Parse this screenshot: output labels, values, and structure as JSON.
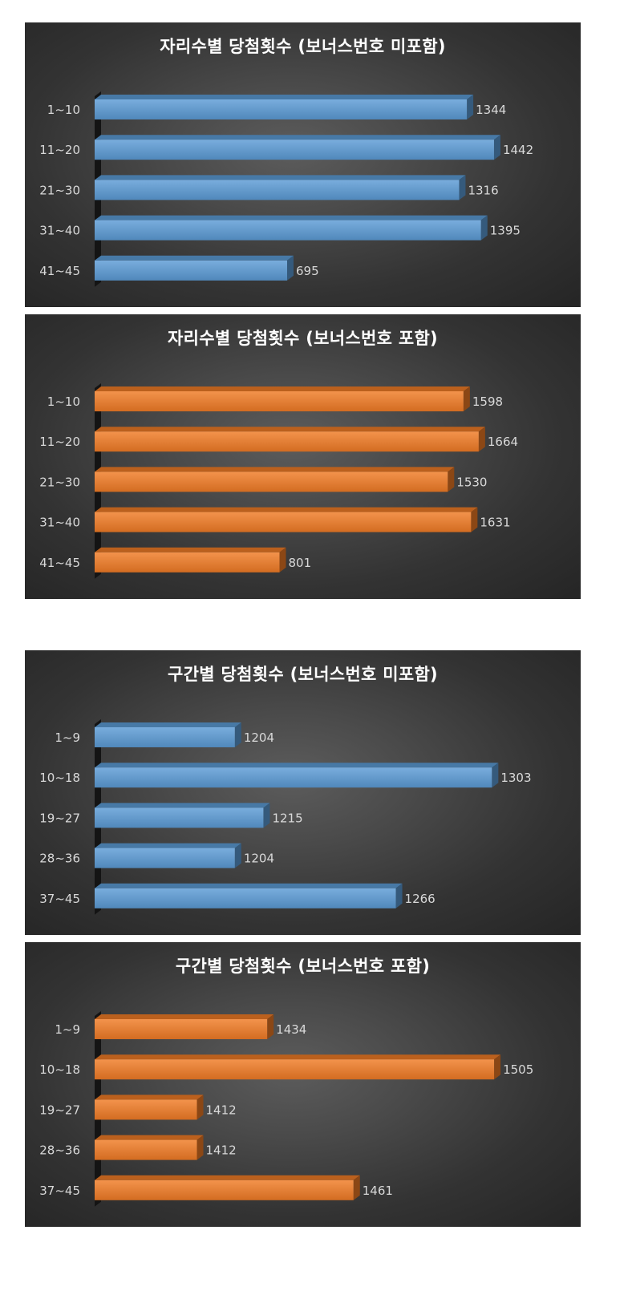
{
  "chart_data": [
    {
      "type": "bar",
      "orientation": "horizontal",
      "title": "자리수별 당첨횟수 (보너스번호 미포함)",
      "categories": [
        "1~10",
        "11~20",
        "21~30",
        "31~40",
        "41~45"
      ],
      "values": [
        1344,
        1442,
        1316,
        1395,
        695
      ],
      "xlim": [
        0,
        1500
      ],
      "grid": false,
      "color": "#5b9bd5"
    },
    {
      "type": "bar",
      "orientation": "horizontal",
      "title": "자리수별 당첨횟수 (보너스번호 포함)",
      "categories": [
        "1~10",
        "11~20",
        "21~30",
        "31~40",
        "41~45"
      ],
      "values": [
        1598,
        1664,
        1530,
        1631,
        801
      ],
      "xlim": [
        0,
        1800
      ],
      "grid": false,
      "color": "#f07b25"
    },
    {
      "type": "bar",
      "orientation": "horizontal",
      "title": "구간별 당첨횟수 (보너스번호 미포함)",
      "categories": [
        "1~9",
        "10~18",
        "19~27",
        "28~36",
        "37~45"
      ],
      "values": [
        1204,
        1303,
        1215,
        1204,
        1266
      ],
      "xlim": [
        1150,
        1310
      ],
      "grid": false,
      "color": "#5b9bd5"
    },
    {
      "type": "bar",
      "orientation": "horizontal",
      "title": "구간별 당첨횟수 (보너스번호 포함)",
      "categories": [
        "1~9",
        "10~18",
        "19~27",
        "28~36",
        "37~45"
      ],
      "values": [
        1434,
        1505,
        1412,
        1412,
        1461
      ],
      "xlim": [
        1380,
        1510
      ],
      "grid": false,
      "color": "#f07b25"
    }
  ]
}
